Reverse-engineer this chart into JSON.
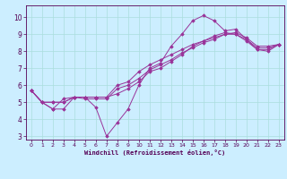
{
  "xlabel": "Windchill (Refroidissement éolien,°C)",
  "bg_color": "#cceeff",
  "grid_color": "#aadddd",
  "line_color": "#993399",
  "xlim": [
    -0.5,
    23.5
  ],
  "ylim": [
    2.8,
    10.7
  ],
  "xticks": [
    0,
    1,
    2,
    3,
    4,
    5,
    6,
    7,
    8,
    9,
    10,
    11,
    12,
    13,
    14,
    15,
    16,
    17,
    18,
    19,
    20,
    21,
    22,
    23
  ],
  "yticks": [
    3,
    4,
    5,
    6,
    7,
    8,
    9,
    10
  ],
  "series": [
    [
      5.7,
      5.0,
      4.6,
      4.6,
      5.3,
      5.3,
      4.7,
      3.0,
      3.8,
      4.6,
      6.0,
      7.0,
      7.3,
      8.3,
      9.0,
      9.8,
      10.1,
      9.8,
      9.2,
      9.3,
      8.7,
      8.1,
      8.0,
      8.4
    ],
    [
      5.7,
      5.0,
      4.6,
      5.2,
      5.3,
      5.2,
      5.2,
      5.2,
      5.8,
      6.0,
      6.4,
      6.9,
      7.2,
      7.5,
      7.9,
      8.2,
      8.5,
      8.7,
      9.0,
      9.1,
      8.8,
      8.3,
      8.3,
      8.4
    ],
    [
      5.7,
      5.0,
      5.0,
      5.0,
      5.3,
      5.3,
      5.3,
      5.3,
      6.0,
      6.2,
      6.8,
      7.2,
      7.5,
      7.8,
      8.1,
      8.4,
      8.6,
      8.8,
      9.0,
      9.0,
      8.7,
      8.2,
      8.2,
      8.4
    ],
    [
      5.7,
      5.0,
      5.0,
      5.0,
      5.3,
      5.3,
      5.3,
      5.3,
      5.5,
      5.8,
      6.2,
      6.8,
      7.0,
      7.4,
      7.8,
      8.3,
      8.6,
      8.9,
      9.1,
      9.0,
      8.6,
      8.1,
      8.1,
      8.4
    ]
  ]
}
